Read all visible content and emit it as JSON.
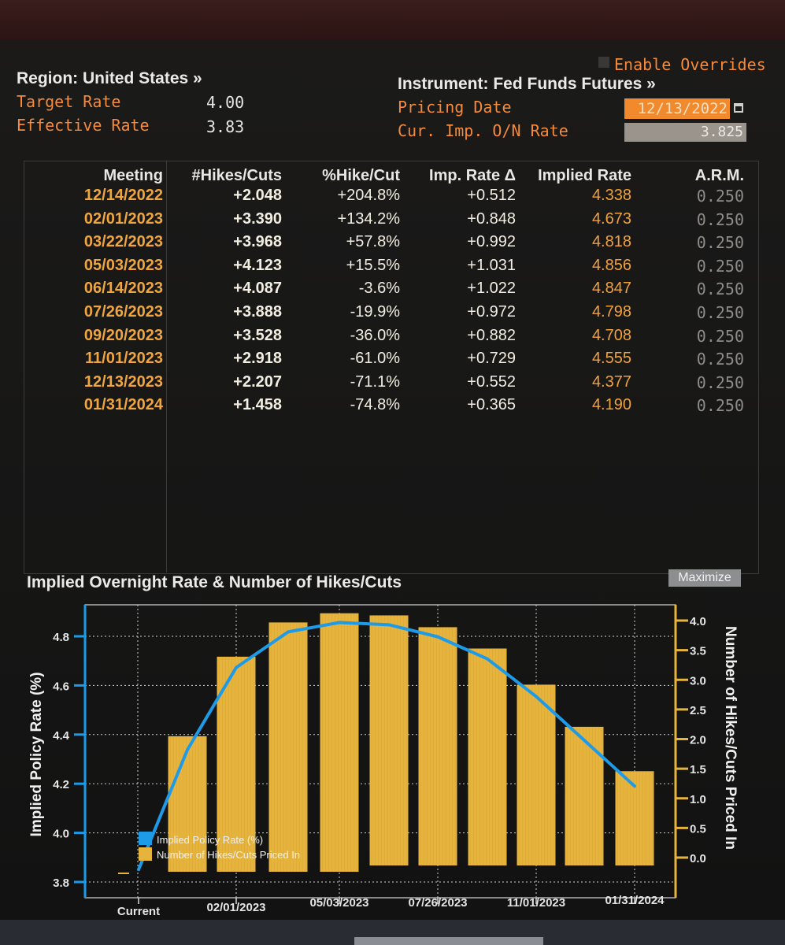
{
  "header": {
    "region_label": "Region: United States »",
    "target_rate_label": "Target Rate",
    "target_rate_value": "4.00",
    "effective_rate_label": "Effective Rate",
    "effective_rate_value": "3.83",
    "enable_overrides": "Enable Overrides",
    "instrument_label": "Instrument: Fed Funds Futures »",
    "pricing_date_label": "Pricing Date",
    "pricing_date_value": "12/13/2022",
    "cur_imp_label": "Cur. Imp. O/N Rate",
    "cur_imp_value": "3.825"
  },
  "table": {
    "headers": [
      "Meeting",
      "#Hikes/Cuts",
      "%Hike/Cut",
      "Imp. Rate Δ",
      "Implied Rate",
      "A.R.M."
    ],
    "rows": [
      {
        "meeting": "12/14/2022",
        "hikes": "+2.048",
        "pct": "+204.8%",
        "imp": "+0.512",
        "rate": "4.338",
        "arm": "0.250"
      },
      {
        "meeting": "02/01/2023",
        "hikes": "+3.390",
        "pct": "+134.2%",
        "imp": "+0.848",
        "rate": "4.673",
        "arm": "0.250"
      },
      {
        "meeting": "03/22/2023",
        "hikes": "+3.968",
        "pct": "+57.8%",
        "imp": "+0.992",
        "rate": "4.818",
        "arm": "0.250"
      },
      {
        "meeting": "05/03/2023",
        "hikes": "+4.123",
        "pct": "+15.5%",
        "imp": "+1.031",
        "rate": "4.856",
        "arm": "0.250"
      },
      {
        "meeting": "06/14/2023",
        "hikes": "+4.087",
        "pct": "-3.6%",
        "imp": "+1.022",
        "rate": "4.847",
        "arm": "0.250"
      },
      {
        "meeting": "07/26/2023",
        "hikes": "+3.888",
        "pct": "-19.9%",
        "imp": "+0.972",
        "rate": "4.798",
        "arm": "0.250"
      },
      {
        "meeting": "09/20/2023",
        "hikes": "+3.528",
        "pct": "-36.0%",
        "imp": "+0.882",
        "rate": "4.708",
        "arm": "0.250"
      },
      {
        "meeting": "11/01/2023",
        "hikes": "+2.918",
        "pct": "-61.0%",
        "imp": "+0.729",
        "rate": "4.555",
        "arm": "0.250"
      },
      {
        "meeting": "12/13/2023",
        "hikes": "+2.207",
        "pct": "-71.1%",
        "imp": "+0.552",
        "rate": "4.377",
        "arm": "0.250"
      },
      {
        "meeting": "01/31/2024",
        "hikes": "+1.458",
        "pct": "-74.8%",
        "imp": "+0.365",
        "rate": "4.190",
        "arm": "0.250"
      }
    ]
  },
  "maximize_label": "Maximize",
  "colors": {
    "line": "#1e9be8",
    "bar": "#e6b43c",
    "orange_label": "#f58a3a",
    "date_orange": "#f0a640",
    "background": "#171716"
  },
  "chart_data": {
    "type": "bar",
    "title": "Implied Overnight Rate & Number of Hikes/Cuts",
    "ylabel_left": "Implied Policy Rate (%)",
    "ylabel_right": "Number of Hikes/Cuts Priced In",
    "ylim_left": [
      3.8,
      4.9
    ],
    "ylim_right": [
      -0.1,
      4.3
    ],
    "yticks_left": [
      "3.8",
      "4.0",
      "4.2",
      "4.4",
      "4.6",
      "4.8"
    ],
    "yticks_right": [
      "0.0",
      "0.5",
      "1.0",
      "1.5",
      "2.0",
      "2.5",
      "3.0",
      "3.5",
      "4.0"
    ],
    "x_ticks": [
      "Current",
      "02/01/2023",
      "05/03/2023",
      "07/26/2023",
      "11/01/2023",
      "01/31/2024"
    ],
    "categories": [
      "Current",
      "12/14/2022",
      "02/01/2023",
      "03/22/2023",
      "05/03/2023",
      "06/14/2023",
      "07/26/2023",
      "09/20/2023",
      "11/01/2023",
      "12/13/2023",
      "01/31/2024"
    ],
    "series": [
      {
        "name": "Implied Policy Rate (%)",
        "type": "line",
        "values": [
          3.825,
          4.338,
          4.673,
          4.818,
          4.856,
          4.847,
          4.798,
          4.708,
          4.555,
          4.377,
          4.19
        ]
      },
      {
        "name": "Number of Hikes/Cuts Priced In",
        "type": "bar",
        "values": [
          0,
          2.048,
          3.39,
          3.968,
          4.123,
          4.087,
          3.888,
          3.528,
          2.918,
          2.207,
          1.458
        ]
      }
    ],
    "grid": true,
    "legend": "bottom-left"
  }
}
